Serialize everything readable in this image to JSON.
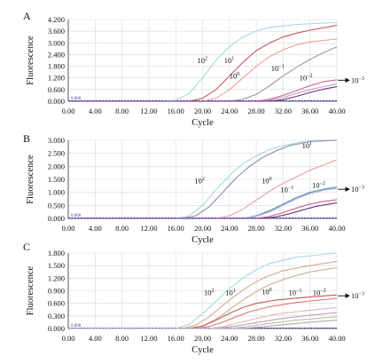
{
  "chart_data": [
    {
      "type": "line",
      "panel": "A",
      "xlabel": "Cycle",
      "ylabel": "Fluorescence",
      "xlim": [
        0,
        40
      ],
      "ylim": [
        0,
        4.2
      ],
      "x_ticks": [
        "0.00",
        "4.00",
        "8.00",
        "12.00",
        "16.00",
        "20.00",
        "24.00",
        "28.00",
        "32.00",
        "36.00",
        "40.00"
      ],
      "y_ticks": [
        "0.000",
        "0.600",
        "1.200",
        "1.800",
        "2.400",
        "3.000",
        "3.600",
        "4.200"
      ],
      "origin_label": "0.000",
      "grid": true,
      "annotations": [
        {
          "base": "10",
          "exp": "2",
          "x": 19.2,
          "y": 2.1
        },
        {
          "base": "10",
          "exp": "1",
          "x": 23.2,
          "y": 2.1
        },
        {
          "base": "10",
          "exp": "0",
          "x": 24.0,
          "y": 1.3
        },
        {
          "base": "10",
          "exp": "−1",
          "x": 30.2,
          "y": 1.7
        },
        {
          "base": "10",
          "exp": "−2",
          "x": 34.4,
          "y": 1.2
        },
        {
          "base": "10",
          "exp": "−3",
          "x": 43.8,
          "y": 1.08,
          "arrow": true
        }
      ],
      "series": [
        {
          "color": "#a6d8e6",
          "values": [
            [
              0,
              0
            ],
            [
              14,
              0
            ],
            [
              16,
              0.05
            ],
            [
              18,
              0.4
            ],
            [
              20,
              1.2
            ],
            [
              22,
              2.1
            ],
            [
              24,
              2.8
            ],
            [
              26,
              3.3
            ],
            [
              28,
              3.6
            ],
            [
              30,
              3.8
            ],
            [
              34,
              3.95
            ],
            [
              40,
              4.05
            ]
          ]
        },
        {
          "color": "#c45a5a",
          "values": [
            [
              0,
              0
            ],
            [
              18,
              0
            ],
            [
              20,
              0.15
            ],
            [
              22,
              0.6
            ],
            [
              24,
              1.3
            ],
            [
              26,
              2.0
            ],
            [
              28,
              2.6
            ],
            [
              30,
              3.0
            ],
            [
              32,
              3.3
            ],
            [
              34,
              3.5
            ],
            [
              36,
              3.65
            ],
            [
              40,
              3.9
            ]
          ]
        },
        {
          "color": "#e8a0a0",
          "values": [
            [
              0,
              0
            ],
            [
              20,
              0
            ],
            [
              22,
              0.15
            ],
            [
              24,
              0.6
            ],
            [
              26,
              1.2
            ],
            [
              28,
              1.8
            ],
            [
              30,
              2.3
            ],
            [
              32,
              2.65
            ],
            [
              34,
              2.9
            ],
            [
              36,
              3.05
            ],
            [
              40,
              3.2
            ]
          ]
        },
        {
          "color": "#9a9aa8",
          "values": [
            [
              0,
              0
            ],
            [
              24,
              0
            ],
            [
              26,
              0.1
            ],
            [
              28,
              0.35
            ],
            [
              30,
              0.8
            ],
            [
              32,
              1.3
            ],
            [
              34,
              1.75
            ],
            [
              36,
              2.15
            ],
            [
              38,
              2.5
            ],
            [
              40,
              2.8
            ]
          ]
        },
        {
          "color": "#c86090",
          "values": [
            [
              0,
              0
            ],
            [
              28,
              0
            ],
            [
              30,
              0.1
            ],
            [
              32,
              0.3
            ],
            [
              34,
              0.55
            ],
            [
              36,
              0.8
            ],
            [
              38,
              1.0
            ],
            [
              40,
              1.1
            ]
          ]
        },
        {
          "color": "#b8a0c8",
          "values": [
            [
              0,
              0
            ],
            [
              28,
              0
            ],
            [
              30,
              0.05
            ],
            [
              32,
              0.2
            ],
            [
              34,
              0.4
            ],
            [
              36,
              0.6
            ],
            [
              38,
              0.75
            ],
            [
              40,
              0.9
            ]
          ]
        },
        {
          "color": "#703080",
          "values": [
            [
              0,
              0
            ],
            [
              30,
              0
            ],
            [
              32,
              0.08
            ],
            [
              34,
              0.25
            ],
            [
              36,
              0.45
            ],
            [
              38,
              0.62
            ],
            [
              40,
              0.75
            ]
          ]
        }
      ]
    },
    {
      "type": "line",
      "panel": "B",
      "xlabel": "Cycle",
      "ylabel": "Fluorescence",
      "xlim": [
        0,
        40
      ],
      "ylim": [
        0,
        3.0
      ],
      "x_ticks": [
        "0.00",
        "4.00",
        "8.00",
        "12.00",
        "16.00",
        "20.00",
        "24.00",
        "28.00",
        "32.00",
        "36.00",
        "40.00"
      ],
      "y_ticks": [
        "0.000",
        "0.500",
        "1.000",
        "1.500",
        "2.000",
        "2.500",
        "3.000"
      ],
      "origin_label": "0.000",
      "grid": true,
      "annotations": [
        {
          "base": "10",
          "exp": "2",
          "x": 18.8,
          "y": 1.45
        },
        {
          "base": "10",
          "exp": "1",
          "x": 34.8,
          "y": 2.8
        },
        {
          "base": "10",
          "exp": "0",
          "x": 28.8,
          "y": 1.45
        },
        {
          "base": "10",
          "exp": "−1",
          "x": 31.6,
          "y": 1.1
        },
        {
          "base": "10",
          "exp": "−2",
          "x": 36.3,
          "y": 1.28
        },
        {
          "base": "10",
          "exp": "−3",
          "x": 43.8,
          "y": 1.12,
          "arrow": true
        }
      ],
      "series": [
        {
          "color": "#a6d8e6",
          "values": [
            [
              0,
              0
            ],
            [
              16,
              0
            ],
            [
              18,
              0.1
            ],
            [
              20,
              0.5
            ],
            [
              22,
              1.1
            ],
            [
              24,
              1.65
            ],
            [
              26,
              2.1
            ],
            [
              28,
              2.4
            ],
            [
              30,
              2.65
            ],
            [
              32,
              2.8
            ],
            [
              36,
              3.0
            ],
            [
              40,
              3.1
            ]
          ]
        },
        {
          "color": "#8c8ca0",
          "values": [
            [
              0,
              0
            ],
            [
              17,
              0
            ],
            [
              19,
              0.1
            ],
            [
              21,
              0.45
            ],
            [
              23,
              1.0
            ],
            [
              25,
              1.55
            ],
            [
              27,
              2.0
            ],
            [
              29,
              2.35
            ],
            [
              31,
              2.6
            ],
            [
              33,
              2.8
            ],
            [
              36,
              2.95
            ],
            [
              40,
              3.1
            ]
          ]
        },
        {
          "color": "#e8a0a0",
          "values": [
            [
              0,
              0
            ],
            [
              22,
              0
            ],
            [
              24,
              0.1
            ],
            [
              26,
              0.35
            ],
            [
              28,
              0.7
            ],
            [
              30,
              1.05
            ],
            [
              32,
              1.35
            ],
            [
              34,
              1.6
            ],
            [
              36,
              1.85
            ],
            [
              38,
              2.05
            ],
            [
              40,
              2.25
            ]
          ]
        },
        {
          "color": "#5a8ab0",
          "values": [
            [
              0,
              0
            ],
            [
              26,
              0
            ],
            [
              28,
              0.1
            ],
            [
              30,
              0.3
            ],
            [
              32,
              0.55
            ],
            [
              34,
              0.8
            ],
            [
              36,
              1.0
            ],
            [
              38,
              1.12
            ],
            [
              40,
              1.2
            ]
          ]
        },
        {
          "color": "#a8b8d8",
          "values": [
            [
              0,
              0
            ],
            [
              26,
              0
            ],
            [
              28,
              0.08
            ],
            [
              30,
              0.25
            ],
            [
              32,
              0.5
            ],
            [
              34,
              0.75
            ],
            [
              36,
              0.95
            ],
            [
              38,
              1.08
            ],
            [
              40,
              1.15
            ]
          ]
        },
        {
          "color": "#c86090",
          "values": [
            [
              0,
              0
            ],
            [
              28,
              0
            ],
            [
              30,
              0.08
            ],
            [
              32,
              0.22
            ],
            [
              34,
              0.4
            ],
            [
              36,
              0.55
            ],
            [
              38,
              0.65
            ],
            [
              40,
              0.72
            ]
          ]
        },
        {
          "color": "#703080",
          "values": [
            [
              0,
              0
            ],
            [
              29,
              0
            ],
            [
              31,
              0.06
            ],
            [
              33,
              0.18
            ],
            [
              35,
              0.33
            ],
            [
              37,
              0.47
            ],
            [
              40,
              0.6
            ]
          ]
        }
      ]
    },
    {
      "type": "line",
      "panel": "C",
      "xlabel": "Cycle",
      "ylabel": "Fluorescence",
      "xlim": [
        0,
        40
      ],
      "ylim": [
        0,
        1.8
      ],
      "x_ticks": [
        "0.00",
        "4.00",
        "8.00",
        "12.00",
        "16.00",
        "20.00",
        "24.00",
        "28.00",
        "32.00",
        "36.00",
        "40.00"
      ],
      "y_ticks": [
        "0.000",
        "0.300",
        "0.600",
        "0.900",
        "1.200",
        "1.500",
        "1.800"
      ],
      "origin_label": "0.000",
      "grid": true,
      "annotations": [
        {
          "base": "10",
          "exp": "2",
          "x": 20.2,
          "y": 0.86
        },
        {
          "base": "10",
          "exp": "1",
          "x": 23.4,
          "y": 0.86
        },
        {
          "base": "10",
          "exp": "0",
          "x": 28.8,
          "y": 0.88
        },
        {
          "base": "10",
          "exp": "−1",
          "x": 32.8,
          "y": 0.86
        },
        {
          "base": "10",
          "exp": "−2",
          "x": 36.4,
          "y": 0.86
        },
        {
          "base": "10",
          "exp": "−3",
          "x": 43.8,
          "y": 0.78,
          "arrow": true
        }
      ],
      "series": [
        {
          "color": "#a6d8e6",
          "values": [
            [
              0,
              0
            ],
            [
              16,
              0
            ],
            [
              18,
              0.1
            ],
            [
              20,
              0.35
            ],
            [
              22,
              0.65
            ],
            [
              24,
              0.95
            ],
            [
              26,
              1.2
            ],
            [
              28,
              1.4
            ],
            [
              30,
              1.55
            ],
            [
              34,
              1.7
            ],
            [
              40,
              1.82
            ]
          ]
        },
        {
          "color": "#d4a890",
          "values": [
            [
              0,
              0
            ],
            [
              17,
              0
            ],
            [
              19,
              0.08
            ],
            [
              21,
              0.28
            ],
            [
              23,
              0.55
            ],
            [
              25,
              0.8
            ],
            [
              27,
              1.02
            ],
            [
              29,
              1.2
            ],
            [
              32,
              1.38
            ],
            [
              36,
              1.5
            ],
            [
              40,
              1.6
            ]
          ]
        },
        {
          "color": "#c8b090",
          "values": [
            [
              0,
              0
            ],
            [
              18,
              0
            ],
            [
              20,
              0.06
            ],
            [
              22,
              0.22
            ],
            [
              24,
              0.45
            ],
            [
              26,
              0.68
            ],
            [
              28,
              0.88
            ],
            [
              30,
              1.05
            ],
            [
              33,
              1.22
            ],
            [
              36,
              1.35
            ],
            [
              40,
              1.45
            ]
          ]
        },
        {
          "color": "#c45a5a",
          "values": [
            [
              0,
              0
            ],
            [
              18,
              0
            ],
            [
              20,
              0.06
            ],
            [
              22,
              0.2
            ],
            [
              24,
              0.36
            ],
            [
              26,
              0.5
            ],
            [
              28,
              0.6
            ],
            [
              31,
              0.68
            ],
            [
              35,
              0.74
            ],
            [
              40,
              0.8
            ]
          ]
        },
        {
          "color": "#d87878",
          "values": [
            [
              0,
              0
            ],
            [
              19,
              0
            ],
            [
              21,
              0.05
            ],
            [
              23,
              0.15
            ],
            [
              25,
              0.28
            ],
            [
              27,
              0.4
            ],
            [
              30,
              0.52
            ],
            [
              34,
              0.62
            ],
            [
              40,
              0.72
            ]
          ]
        },
        {
          "color": "#e8b8b8",
          "values": [
            [
              0,
              0
            ],
            [
              21,
              0
            ],
            [
              23,
              0.04
            ],
            [
              25,
              0.12
            ],
            [
              28,
              0.24
            ],
            [
              31,
              0.34
            ],
            [
              35,
              0.42
            ],
            [
              40,
              0.5
            ]
          ]
        },
        {
          "color": "#b8a0c8",
          "values": [
            [
              0,
              0
            ],
            [
              22,
              0
            ],
            [
              25,
              0.06
            ],
            [
              28,
              0.14
            ],
            [
              31,
              0.22
            ],
            [
              35,
              0.3
            ],
            [
              40,
              0.38
            ]
          ]
        },
        {
          "color": "#c8b8a0",
          "values": [
            [
              0,
              0
            ],
            [
              24,
              0
            ],
            [
              27,
              0.05
            ],
            [
              30,
              0.12
            ],
            [
              34,
              0.2
            ],
            [
              40,
              0.28
            ]
          ]
        },
        {
          "color": "#a8a8b8",
          "values": [
            [
              0,
              0
            ],
            [
              26,
              0
            ],
            [
              29,
              0.04
            ],
            [
              32,
              0.09
            ],
            [
              36,
              0.15
            ],
            [
              40,
              0.2
            ]
          ]
        }
      ]
    }
  ]
}
